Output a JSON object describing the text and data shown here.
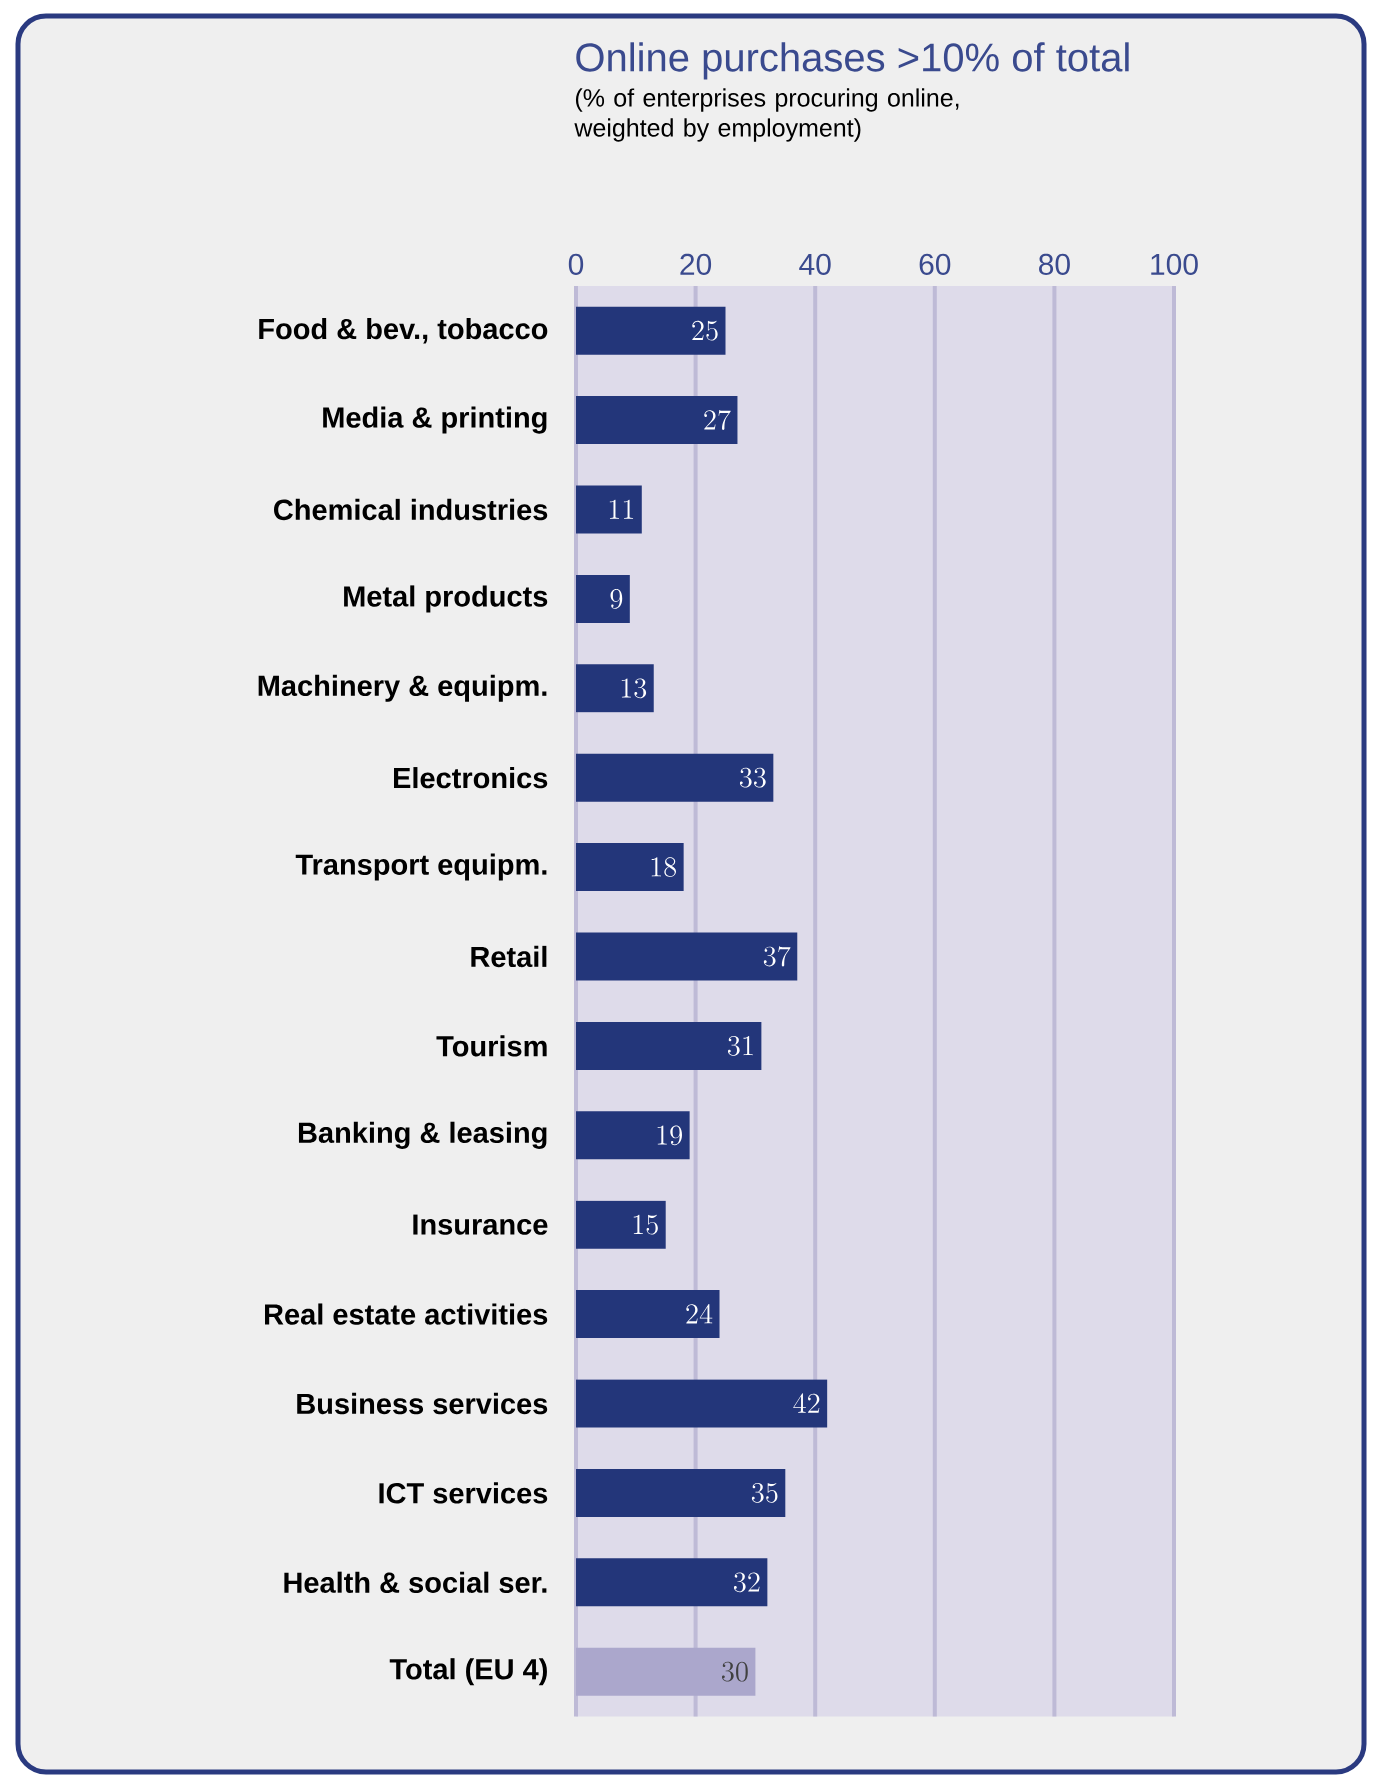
{
  "chart_data": {
    "type": "bar",
    "orientation": "horizontal",
    "title": "Online purchases >10% of total",
    "subtitle": "(% of enterprises procuring online, weighted by employment)",
    "categories": [
      "Food & bev., tobacco",
      "Media & printing",
      "Chemical industries",
      "Metal products",
      "Machinery & equipm.",
      "Electronics",
      "Transport equipm.",
      "Retail",
      "Tourism",
      "Banking & leasing",
      "Insurance",
      "Real estate activities",
      "Business services",
      "ICT services",
      "Health & social ser.",
      "Total (EU 4)"
    ],
    "values": [
      25,
      27,
      11,
      9,
      13,
      33,
      18,
      37,
      31,
      19,
      15,
      24,
      42,
      35,
      32,
      30
    ],
    "colors": [
      "#23367a",
      "#23367a",
      "#23367a",
      "#23367a",
      "#23367a",
      "#23367a",
      "#23367a",
      "#23367a",
      "#23367a",
      "#23367a",
      "#23367a",
      "#23367a",
      "#23367a",
      "#23367a",
      "#23367a",
      "#aba7cc"
    ],
    "xlim": [
      0,
      100
    ],
    "xticks": [
      0,
      20,
      40,
      60,
      80,
      100
    ],
    "grid": "x",
    "data_labels": true
  }
}
